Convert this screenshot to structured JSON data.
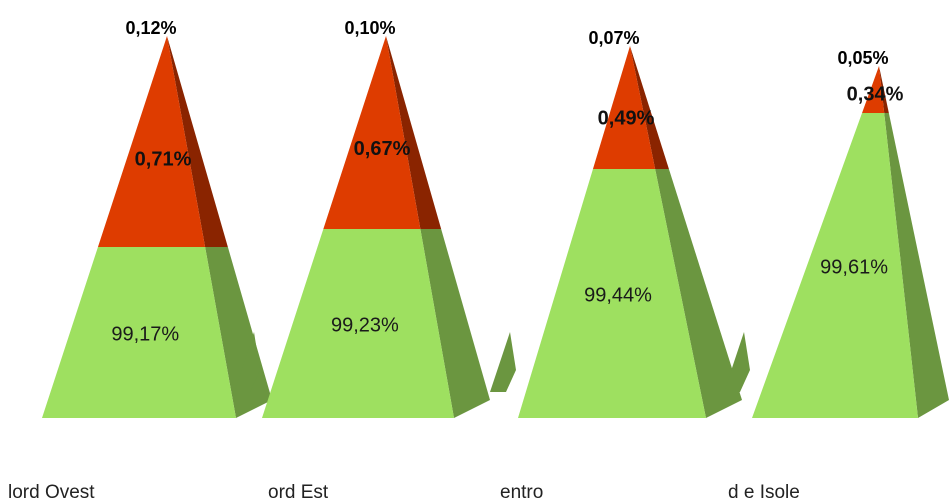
{
  "chart_data": {
    "type": "pyramid",
    "colors": {
      "green": "#9ee060",
      "green_side": "#6b9640",
      "red": "#de3c00",
      "red_side": "#8a2400"
    },
    "series": [
      {
        "name": "",
        "color": "#9ee060"
      },
      {
        "name": "",
        "color": "#de3c00"
      },
      {
        "name": "",
        "color": "#000000"
      }
    ],
    "categories": [
      "Nord Ovest",
      "Nord Est",
      "Centro",
      "Sud e Isole"
    ],
    "category_labels_visible": [
      "lord Ovest",
      "ord Est",
      "entro",
      "d e Isole"
    ],
    "pyramids": [
      {
        "category": "Nord Ovest",
        "green": 99.17,
        "red": 0.71,
        "top": 0.12,
        "green_label": "99,17%",
        "red_label": "0,71%",
        "top_label": "0,12%"
      },
      {
        "category": "Nord Est",
        "green": 99.23,
        "red": 0.67,
        "top": 0.1,
        "green_label": "99,23%",
        "red_label": "0,67%",
        "top_label": "0,10%"
      },
      {
        "category": "Centro",
        "green": 99.44,
        "red": 0.49,
        "top": 0.07,
        "green_label": "99,44%",
        "red_label": "0,49%",
        "top_label": "0,07%"
      },
      {
        "category": "Sud e Isole",
        "green": 99.61,
        "red": 0.34,
        "top": 0.05,
        "green_label": "99,61%",
        "red_label": "0,34%",
        "top_label": "0,05%"
      }
    ]
  }
}
